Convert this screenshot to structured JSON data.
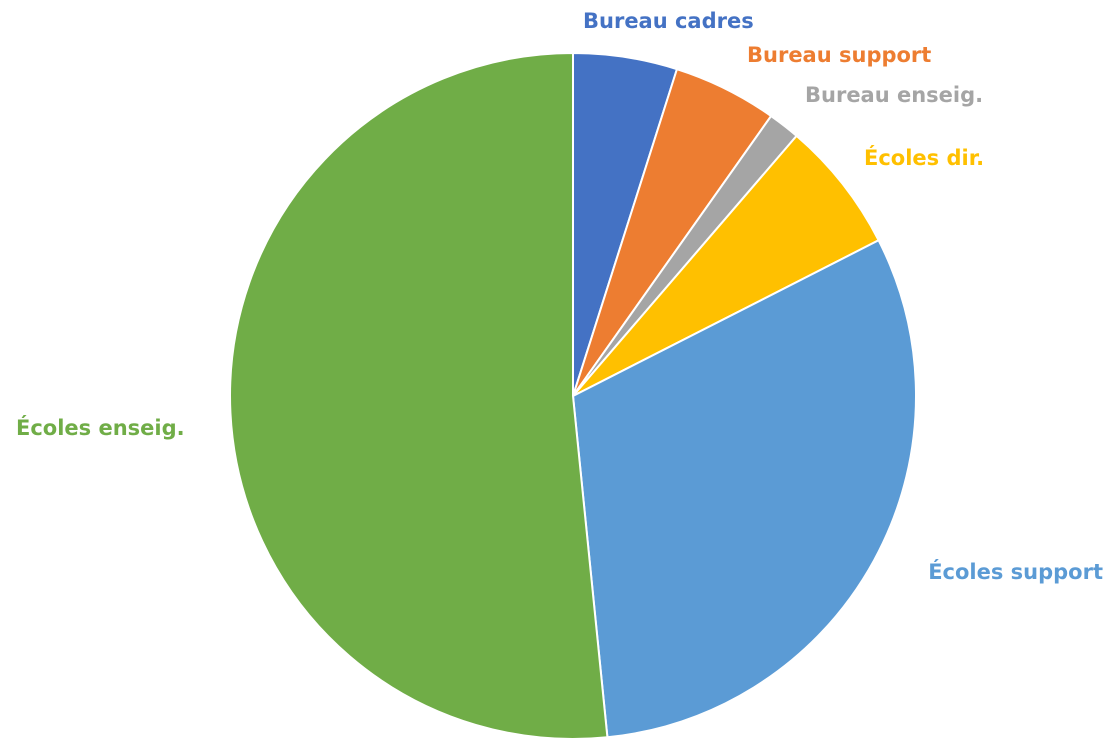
{
  "chart_data": {
    "type": "pie",
    "title": "",
    "start_angle_deg": 0,
    "direction": "clockwise",
    "legend": "none",
    "categories": [
      "Bureau cadres",
      "Bureau support",
      "Bureau enseig.",
      "Écoles dir.",
      "Écoles support",
      "Écoles enseig."
    ],
    "values": [
      4.9,
      4.9,
      1.5,
      6.2,
      30.9,
      51.6
    ],
    "colors": [
      "#4472C4",
      "#ED7D31",
      "#A5A5A5",
      "#FFC000",
      "#5B9BD5",
      "#70AD47"
    ]
  }
}
